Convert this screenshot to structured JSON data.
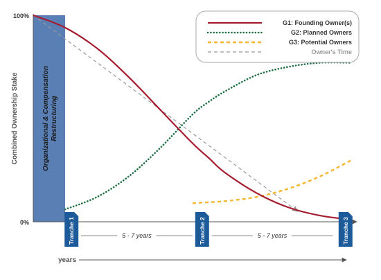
{
  "chart_data": {
    "type": "line",
    "ylabel": "Combined Ownership Stake",
    "xlabel": "years",
    "yticks": [
      "100%",
      "0%"
    ],
    "ylim": [
      0,
      100
    ],
    "xlim": [
      0,
      10
    ],
    "band": {
      "label": "Organizational & Compensation Restructuring",
      "x_start": 0,
      "x_end": 1.0,
      "color": "#5a7fb5"
    },
    "tranches": [
      {
        "label": "Tranche 1",
        "x": 1.2
      },
      {
        "label": "Tranche 2",
        "x": 5.3
      },
      {
        "label": "Tranche 3",
        "x": 9.8
      }
    ],
    "intervals": [
      {
        "label": "5 - 7 years",
        "x_start": 1.5,
        "x_end": 5.0
      },
      {
        "label": "5 - 7 years",
        "x_start": 5.6,
        "x_end": 9.4
      }
    ],
    "legend_position": "top-right",
    "series": [
      {
        "name": "G1: Founding Owner(s)",
        "color": "#a51c30",
        "style": "solid",
        "x": [
          0,
          1,
          2,
          3,
          4,
          5,
          5.5,
          6,
          7,
          8,
          9,
          10
        ],
        "y": [
          100,
          94,
          84,
          70,
          54,
          38,
          31,
          24,
          14,
          7,
          3,
          1
        ]
      },
      {
        "name": "G2: Planned Owners",
        "color": "#1e6f44",
        "style": "dotted",
        "x": [
          1,
          2,
          3,
          4,
          5,
          5.5,
          6,
          7,
          8,
          9,
          10
        ],
        "y": [
          6,
          12,
          22,
          36,
          52,
          58,
          63,
          71,
          75,
          77,
          77
        ]
      },
      {
        "name": "G3: Potential Owners",
        "color": "#f5b52e",
        "style": "dashed",
        "x": [
          5,
          6,
          7,
          8,
          9,
          10
        ],
        "y": [
          9,
          10,
          12,
          16,
          22,
          30
        ]
      },
      {
        "name": "Owner's Time",
        "color": "#999999",
        "style": "dashed-arrow",
        "x": [
          0,
          8.3
        ],
        "y": [
          100,
          5
        ]
      }
    ]
  }
}
